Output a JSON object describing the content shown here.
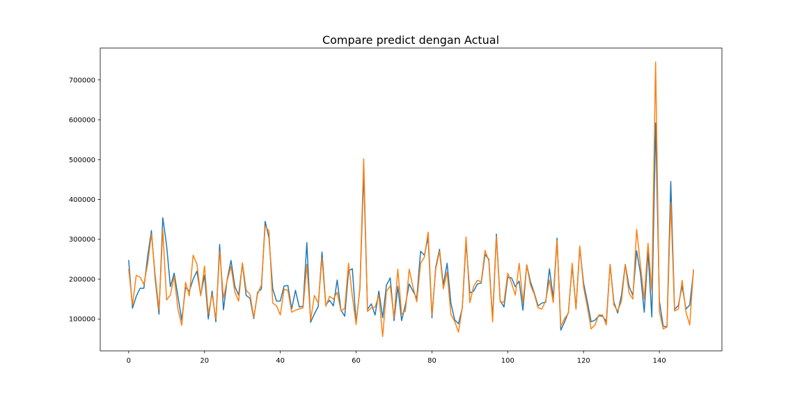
{
  "chart_data": {
    "type": "line",
    "title": "Compare  predict dengan Actual",
    "xlabel": "",
    "ylabel": "",
    "xlim": [
      -7.5,
      156.5
    ],
    "ylim": [
      20000,
      780000
    ],
    "x_ticks": [
      0,
      20,
      40,
      60,
      80,
      100,
      120,
      140
    ],
    "y_ticks": [
      100000,
      200000,
      300000,
      400000,
      500000,
      600000,
      700000
    ],
    "y_tick_labels": [
      "100000",
      "200000",
      "300000",
      "400000",
      "500000",
      "600000",
      "700000"
    ],
    "grid": false,
    "legend": false,
    "series": [
      {
        "color": "#1f77b4",
        "values": [
          248000,
          127000,
          157000,
          177000,
          177000,
          257000,
          322000,
          200000,
          112000,
          354000,
          285000,
          181000,
          215000,
          157000,
          97000,
          179000,
          170000,
          200000,
          220000,
          160000,
          210000,
          100000,
          170000,
          93000,
          287000,
          123000,
          200000,
          247000,
          182000,
          160000,
          238000,
          159000,
          152000,
          101000,
          167000,
          175000,
          345000,
          304000,
          176000,
          145000,
          145000,
          183000,
          184000,
          125000,
          172000,
          130000,
          132000,
          292000,
          92000,
          113000,
          131000,
          268000,
          135000,
          147000,
          133000,
          198000,
          122000,
          107000,
          221000,
          226000,
          90000,
          176000,
          468000,
          124000,
          138000,
          110000,
          170000,
          103000,
          185000,
          203000,
          96000,
          182000,
          96000,
          136000,
          188000,
          170000,
          152000,
          270000,
          260000,
          305000,
          103000,
          230000,
          275000,
          185000,
          240000,
          140000,
          98000,
          88000,
          127000,
          293000,
          165000,
          170000,
          188000,
          190000,
          262000,
          250000,
          100000,
          313000,
          146000,
          130000,
          205000,
          203000,
          181000,
          195000,
          122000,
          236000,
          193000,
          165000,
          133000,
          140000,
          142000,
          226000,
          153000,
          303000,
          72000,
          93000,
          117000,
          234000,
          127000,
          280000,
          190000,
          143000,
          93000,
          97000,
          108000,
          107000,
          94000,
          237000,
          142000,
          115000,
          160000,
          237000,
          182000,
          159000,
          271000,
          215000,
          117000,
          270000,
          105000,
          592000,
          145000,
          82000,
          80000,
          445000,
          124000,
          134000,
          183000,
          125000,
          135000,
          220000
        ]
      },
      {
        "color": "#ff7f0e",
        "values": [
          226000,
          135000,
          210000,
          205000,
          187000,
          238000,
          313000,
          210000,
          123000,
          324000,
          148000,
          160000,
          207000,
          125000,
          84000,
          192000,
          158000,
          260000,
          238000,
          158000,
          233000,
          113000,
          162000,
          100000,
          270000,
          152000,
          197000,
          232000,
          168000,
          145000,
          241000,
          172000,
          162000,
          104000,
          163000,
          185000,
          333000,
          321000,
          140000,
          133000,
          110000,
          175000,
          172000,
          117000,
          122000,
          125000,
          128000,
          237000,
          97000,
          159000,
          140000,
          253000,
          132000,
          157000,
          150000,
          167000,
          120000,
          127000,
          240000,
          157000,
          86000,
          180000,
          502000,
          119000,
          128000,
          130000,
          160000,
          56000,
          170000,
          183000,
          103000,
          225000,
          112000,
          120000,
          225000,
          180000,
          143000,
          240000,
          255000,
          318000,
          110000,
          225000,
          270000,
          176000,
          218000,
          112000,
          94000,
          67000,
          128000,
          306000,
          141000,
          182000,
          197000,
          193000,
          272000,
          246000,
          93000,
          307000,
          143000,
          142000,
          215000,
          190000,
          160000,
          240000,
          142000,
          235000,
          185000,
          162000,
          128000,
          125000,
          146000,
          198000,
          141000,
          297000,
          82000,
          101000,
          115000,
          240000,
          124000,
          283000,
          180000,
          130000,
          75000,
          85000,
          110000,
          110000,
          85000,
          237000,
          135000,
          120000,
          145000,
          236000,
          165000,
          150000,
          325000,
          235000,
          150000,
          290000,
          170000,
          745000,
          119000,
          75000,
          80000,
          392000,
          120000,
          125000,
          197000,
          118000,
          85000,
          225000
        ]
      }
    ]
  }
}
